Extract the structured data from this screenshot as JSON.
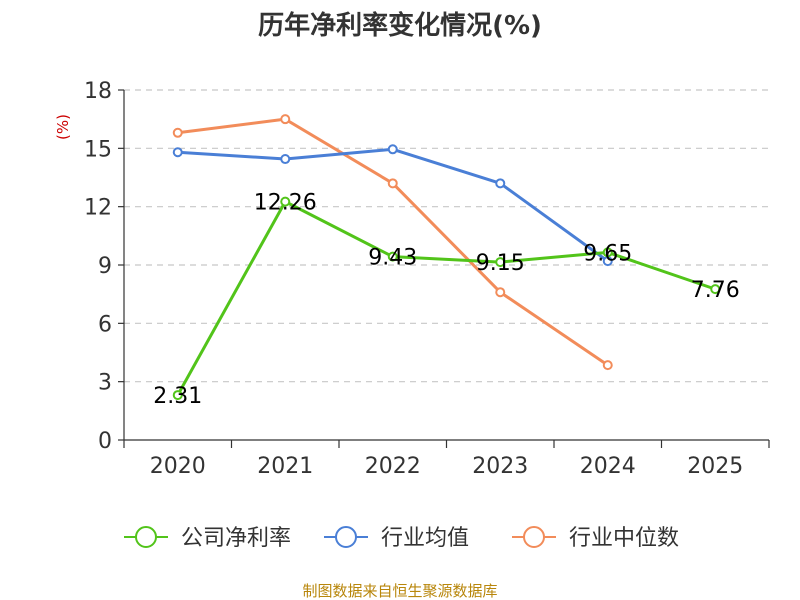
{
  "chart_data": {
    "type": "line",
    "title": "历年净利率变化情况(%)",
    "ylabel": "(%)",
    "xlabel": "",
    "categories": [
      "2020",
      "2021",
      "2022",
      "2023",
      "2024",
      "2025"
    ],
    "ylim": [
      0,
      18
    ],
    "yticks": [
      0,
      3,
      6,
      9,
      12,
      15,
      18
    ],
    "grid": "horizontal dashed",
    "legend_position": "bottom",
    "series": [
      {
        "name": "公司净利率",
        "color": "#52c41a",
        "values": [
          2.31,
          12.26,
          9.43,
          9.15,
          9.65,
          7.76
        ],
        "labels": [
          "2.31",
          "12.26",
          "9.43",
          "9.15",
          "9.65",
          "7.76"
        ]
      },
      {
        "name": "行业均值",
        "color": "#4a7fd6",
        "values": [
          14.8,
          14.45,
          14.95,
          13.2,
          9.2,
          null
        ]
      },
      {
        "name": "行业中位数",
        "color": "#f28c5a",
        "values": [
          15.8,
          16.5,
          13.2,
          7.6,
          3.85,
          null
        ]
      }
    ],
    "source": "制图数据来自恒生聚源数据库"
  }
}
